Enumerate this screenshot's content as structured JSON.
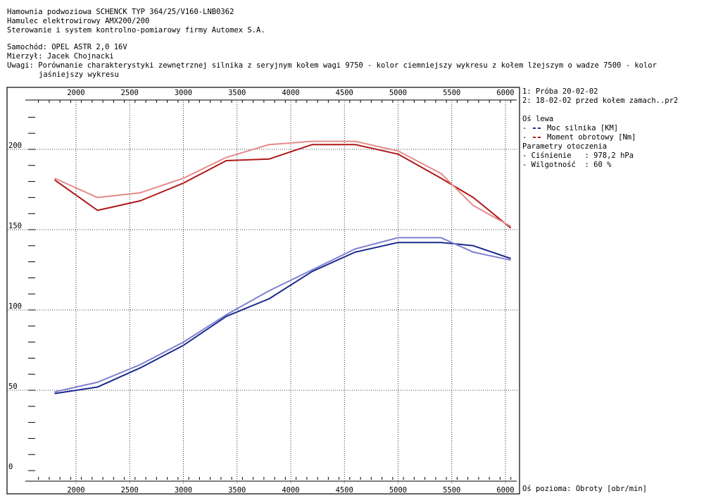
{
  "header": {
    "line1": "Hamownia podwoziowa SCHENCK TYP 364/25/V160-LNB0362",
    "line2": "Hamulec elektrowirowy AMX200/200",
    "line3": "Sterowanie i system kontrolno-pomiarowy firmy Automex S.A.",
    "car": "Samochód: OPEL ASTR 2,0 16V",
    "measured": "Mierzył: Jacek Chojnacki",
    "notes_1": "Uwagi: Porównanie charakterystyki zewnętrznej silnika z seryjnym kołem wagi 9750 - kolor ciemniejszy wykresu z kołem lżejszym o wadze 7500 - kolor",
    "notes_2": "jaśniejszy wykresu"
  },
  "legend": {
    "file1": "1: Próba 20-02-02",
    "file2": "2: 18-02-02 przed kołem zamach..pr2",
    "axis_title": "Oś lewa",
    "power_label": "Moc silnika [KM]",
    "torque_label": "Moment obrotowy [Nm]",
    "env_title": "Parametry otoczenia",
    "pressure": "- Ciśnienie   : 978,2 hPa",
    "humidity": "- Wilgotność  : 60 %",
    "power_color": "#1a2a8c",
    "torque_color": "#b01818"
  },
  "x_axis_label": "Oś pozioma: Obroty [obr/min]",
  "chart_data": {
    "type": "line",
    "x_ticks": [
      2000,
      2500,
      3000,
      3500,
      4000,
      4500,
      5000,
      5500,
      6000
    ],
    "y_ticks": [
      0,
      50,
      100,
      150,
      200
    ],
    "xlim": [
      1650,
      6100
    ],
    "ylim": [
      0,
      240
    ],
    "grid": true,
    "series": [
      {
        "color": "#b01818",
        "x": [
          1800,
          2200,
          2600,
          3000,
          3400,
          3800,
          4200,
          4600,
          5000,
          5400,
          5700,
          6050
        ],
        "y": [
          181,
          162,
          168,
          179,
          193,
          194,
          203,
          203,
          197,
          182,
          170,
          151
        ]
      },
      {
        "color": "#e48a8a",
        "x": [
          1800,
          2200,
          2600,
          3000,
          3400,
          3800,
          4200,
          4600,
          5000,
          5400,
          5700,
          6050
        ],
        "y": [
          182,
          170,
          173,
          182,
          195,
          203,
          205,
          205,
          199,
          185,
          165,
          152
        ]
      },
      {
        "color": "#1a2a8c",
        "x": [
          1800,
          2200,
          2600,
          3000,
          3400,
          3800,
          4200,
          4600,
          5000,
          5400,
          5700,
          6050
        ],
        "y": [
          48,
          52,
          64,
          78,
          96,
          107,
          124,
          136,
          142,
          142,
          140,
          132
        ]
      },
      {
        "color": "#8080d0",
        "x": [
          1800,
          2200,
          2600,
          3000,
          3400,
          3800,
          4200,
          4600,
          5000,
          5400,
          5700,
          6050
        ],
        "y": [
          49,
          55,
          66,
          80,
          97,
          112,
          125,
          138,
          145,
          145,
          136,
          131
        ]
      }
    ]
  }
}
